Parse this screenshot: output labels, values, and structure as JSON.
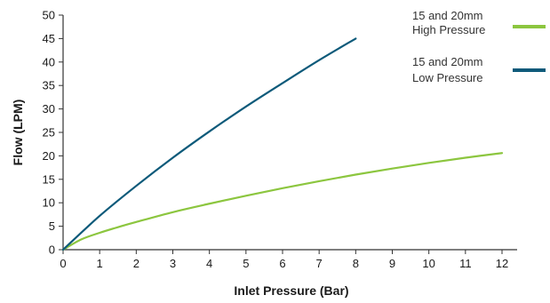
{
  "chart_data": {
    "type": "line",
    "title": "",
    "xlabel": "Inlet Pressure (Bar)",
    "ylabel": "Flow (LPM)",
    "xlim": [
      0,
      12
    ],
    "ylim": [
      0,
      50
    ],
    "x_ticks": [
      0,
      1,
      2,
      3,
      4,
      5,
      6,
      7,
      8,
      9,
      10,
      11,
      12
    ],
    "y_ticks": [
      0,
      5,
      10,
      15,
      20,
      25,
      30,
      35,
      40,
      45,
      50
    ],
    "grid": false,
    "legend_position": "top-right",
    "series": [
      {
        "name_lines": [
          "15 and 20mm",
          "High Pressure"
        ],
        "color": "#8cc63f",
        "x": [
          0,
          0.5,
          1,
          1.5,
          2,
          3,
          4,
          5,
          6,
          7,
          8,
          9,
          10,
          11,
          12
        ],
        "y": [
          0,
          2.2,
          3.6,
          4.8,
          5.9,
          8.0,
          9.8,
          11.5,
          13.1,
          14.6,
          16.0,
          17.3,
          18.5,
          19.6,
          20.6
        ]
      },
      {
        "name_lines": [
          "15 and 20mm",
          "Low Pressure"
        ],
        "color": "#0d5a7a",
        "x": [
          0,
          1,
          2,
          3,
          4,
          5,
          6,
          7,
          8
        ],
        "y": [
          0,
          7.2,
          13.6,
          19.6,
          25.2,
          30.5,
          35.5,
          40.4,
          45.0
        ]
      }
    ]
  }
}
